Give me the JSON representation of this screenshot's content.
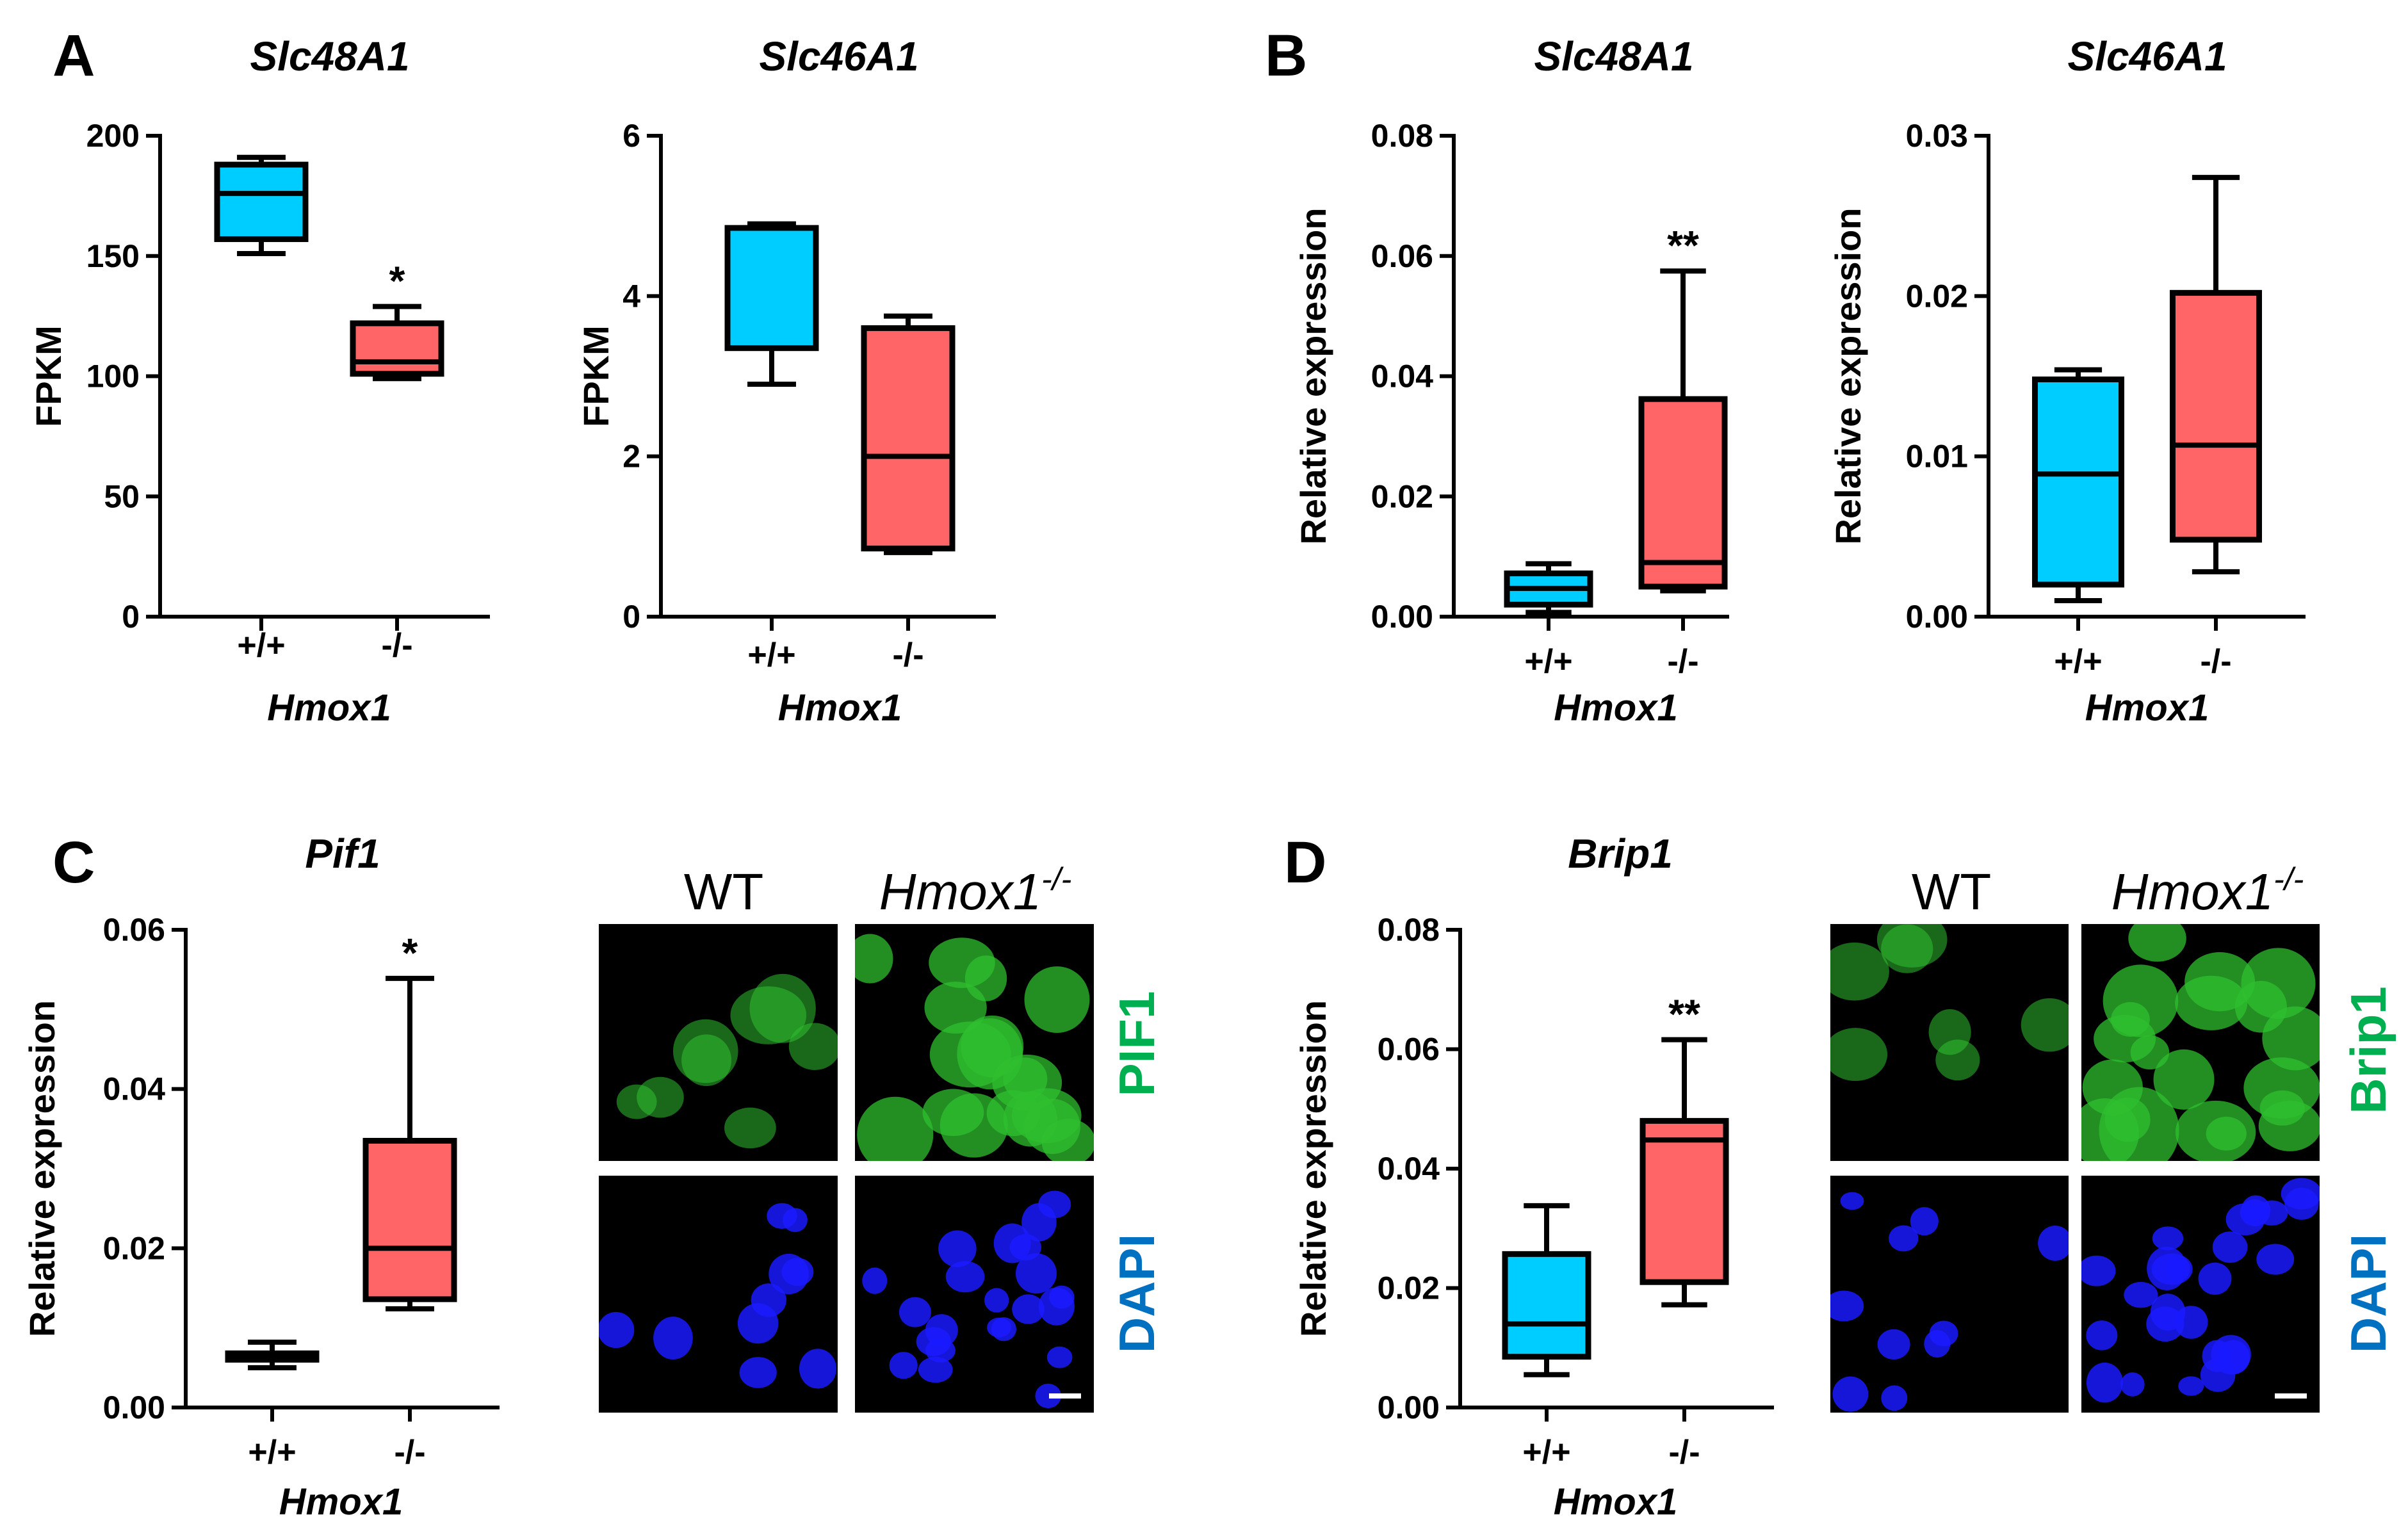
{
  "figure": {
    "panels": [
      "A",
      "B",
      "C",
      "D"
    ]
  },
  "colors": {
    "wt": "#00cdff",
    "ko": "#ff6466",
    "green_stain": "#00b050",
    "blue_stain": "#0070c0",
    "cell_green": "#2fbf2f",
    "cell_blue": "#1a1aff"
  },
  "chart_data": [
    {
      "type": "box",
      "panel": "A",
      "title": "Slc48A1",
      "ylabel": "FPKM",
      "xlabel": "Hmox1",
      "categories": [
        "+/+",
        "-/-"
      ],
      "ylim": [
        0,
        200
      ],
      "yticks": [
        "0",
        "50",
        "100",
        "150",
        "200"
      ],
      "ytick_values": [
        0,
        50,
        100,
        150,
        200
      ],
      "boxes": [
        {
          "name": "+/+",
          "min": 151,
          "q1": 157,
          "median": 176,
          "q3": 188,
          "max": 191
        },
        {
          "name": "-/-",
          "min": 99,
          "q1": 101,
          "median": 106,
          "q3": 122,
          "max": 129
        }
      ],
      "significance": [
        {
          "category": "-/-",
          "label": "*"
        }
      ]
    },
    {
      "type": "box",
      "panel": "A",
      "title": "Slc46A1",
      "ylabel": "FPKM",
      "xlabel": "Hmox1",
      "categories": [
        "+/+",
        "-/-"
      ],
      "ylim": [
        0,
        6
      ],
      "yticks": [
        "0",
        "2",
        "4",
        "6"
      ],
      "ytick_values": [
        0,
        2,
        4,
        6
      ],
      "boxes": [
        {
          "name": "+/+",
          "min": 2.9,
          "q1": 3.35,
          "median": 4.85,
          "q3": 4.85,
          "max": 4.9
        },
        {
          "name": "-/-",
          "min": 0.8,
          "q1": 0.85,
          "median": 2.0,
          "q3": 3.6,
          "max": 3.75
        }
      ],
      "significance": []
    },
    {
      "type": "box",
      "panel": "B",
      "title": "Slc48A1",
      "ylabel": "Relative expression",
      "xlabel": "Hmox1",
      "categories": [
        "+/+",
        "-/-"
      ],
      "ylim": [
        0,
        0.08
      ],
      "yticks": [
        "0.00",
        "0.02",
        "0.04",
        "0.06",
        "0.08"
      ],
      "ytick_values": [
        0,
        0.02,
        0.04,
        0.06,
        0.08
      ],
      "boxes": [
        {
          "name": "+/+",
          "min": 0.0007,
          "q1": 0.002,
          "median": 0.0047,
          "q3": 0.0072,
          "max": 0.0088
        },
        {
          "name": "-/-",
          "min": 0.0043,
          "q1": 0.005,
          "median": 0.009,
          "q3": 0.0362,
          "max": 0.0575
        }
      ],
      "significance": [
        {
          "category": "-/-",
          "label": "**"
        }
      ]
    },
    {
      "type": "box",
      "panel": "B",
      "title": "Slc46A1",
      "ylabel": "Relative expression",
      "xlabel": "Hmox1",
      "categories": [
        "+/+",
        "-/-"
      ],
      "ylim": [
        0,
        0.03
      ],
      "yticks": [
        "0.00",
        "0.01",
        "0.02",
        "0.03"
      ],
      "ytick_values": [
        0,
        0.01,
        0.02,
        0.03
      ],
      "boxes": [
        {
          "name": "+/+",
          "min": 0.001,
          "q1": 0.002,
          "median": 0.0089,
          "q3": 0.0148,
          "max": 0.0154
        },
        {
          "name": "-/-",
          "min": 0.0028,
          "q1": 0.0048,
          "median": 0.0107,
          "q3": 0.0202,
          "max": 0.0274
        }
      ],
      "significance": []
    },
    {
      "type": "box",
      "panel": "C",
      "title": "Pif1",
      "ylabel": "Relative expression",
      "xlabel": "Hmox1",
      "categories": [
        "+/+",
        "-/-"
      ],
      "ylim": [
        0,
        0.06
      ],
      "yticks": [
        "0.00",
        "0.02",
        "0.04",
        "0.06"
      ],
      "ytick_values": [
        0,
        0.02,
        0.04,
        0.06
      ],
      "boxes": [
        {
          "name": "+/+",
          "min": 0.005,
          "q1": 0.006,
          "median": 0.0064,
          "q3": 0.0068,
          "max": 0.0082
        },
        {
          "name": "-/-",
          "min": 0.0124,
          "q1": 0.0136,
          "median": 0.02,
          "q3": 0.0335,
          "max": 0.0539
        }
      ],
      "significance": [
        {
          "category": "-/-",
          "label": "*"
        }
      ]
    },
    {
      "type": "box",
      "panel": "D",
      "title": "Brip1",
      "ylabel": "Relative expression",
      "xlabel": "Hmox1",
      "categories": [
        "+/+",
        "-/-"
      ],
      "ylim": [
        0,
        0.08
      ],
      "yticks": [
        "0.00",
        "0.02",
        "0.04",
        "0.06",
        "0.08"
      ],
      "ytick_values": [
        0,
        0.02,
        0.04,
        0.06,
        0.08
      ],
      "boxes": [
        {
          "name": "+/+",
          "min": 0.0055,
          "q1": 0.0085,
          "median": 0.014,
          "q3": 0.0257,
          "max": 0.0338
        },
        {
          "name": "-/-",
          "min": 0.0172,
          "q1": 0.021,
          "median": 0.0448,
          "q3": 0.048,
          "max": 0.0616
        }
      ],
      "significance": [
        {
          "category": "-/-",
          "label": "**"
        }
      ]
    }
  ],
  "micrographs": [
    {
      "panel": "C",
      "col_headers": [
        {
          "text": "WT"
        },
        {
          "text": "Hmox1",
          "sup": "-/-"
        }
      ],
      "row_labels": [
        "PIF1",
        "DAPI"
      ]
    },
    {
      "panel": "D",
      "col_headers": [
        {
          "text": "WT"
        },
        {
          "text": "Hmox1",
          "sup": "-/-"
        }
      ],
      "row_labels": [
        "Brip1",
        "DAPI"
      ]
    }
  ]
}
